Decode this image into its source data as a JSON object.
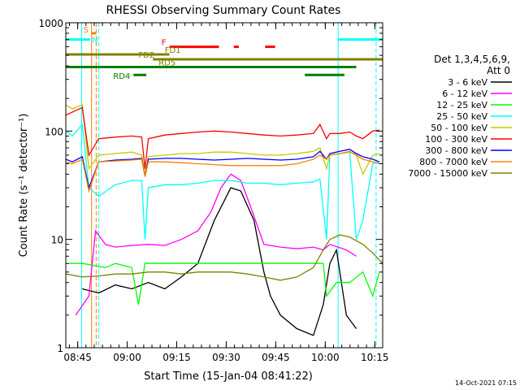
{
  "chart_data": {
    "type": "line",
    "title": "RHESSI Observing Summary Count Rates",
    "xlabel": "Start Time (15-Jan-04 08:41:22)",
    "ylabel": "Count Rate (s⁻¹ detector⁻¹)",
    "x_unit": "minutes after 08:41:22",
    "xlim": [
      0,
      96
    ],
    "ylim": [
      1,
      1000
    ],
    "y_scale": "log",
    "grid": false,
    "legend_position": "right",
    "x_ticks": [
      {
        "minute": 3.6,
        "label": "08:45"
      },
      {
        "minute": 18.6,
        "label": "09:00"
      },
      {
        "minute": 33.6,
        "label": "09:15"
      },
      {
        "minute": 48.6,
        "label": "09:30"
      },
      {
        "minute": 63.6,
        "label": "09:45"
      },
      {
        "minute": 78.6,
        "label": "10:00"
      },
      {
        "minute": 93.6,
        "label": "10:15"
      }
    ],
    "y_ticks": [
      {
        "value": 1,
        "label": "1"
      },
      {
        "value": 10,
        "label": "10"
      },
      {
        "value": 100,
        "label": "100"
      },
      {
        "value": 1000,
        "label": "1000"
      }
    ],
    "legend_header": [
      "Det 1,3,4,5,6,9,",
      "Att 0"
    ],
    "timestamp": "14-Oct-2021 07:15",
    "series": [
      {
        "name": "3 - 6 keV",
        "color": "#000000",
        "points": [
          [
            5,
            3.5
          ],
          [
            10,
            3.2
          ],
          [
            15,
            3.8
          ],
          [
            20,
            3.5
          ],
          [
            25,
            4.0
          ],
          [
            30,
            3.5
          ],
          [
            35,
            4.5
          ],
          [
            40,
            6
          ],
          [
            45,
            15
          ],
          [
            50,
            30
          ],
          [
            53,
            28
          ],
          [
            57,
            15
          ],
          [
            60,
            5
          ],
          [
            62,
            3
          ],
          [
            65,
            2
          ],
          [
            70,
            1.5
          ],
          [
            75,
            1.3
          ],
          [
            78,
            2.5
          ],
          [
            80,
            6
          ],
          [
            82,
            8
          ],
          [
            85,
            2
          ],
          [
            88,
            1.5
          ]
        ]
      },
      {
        "name": "6 - 12 keV",
        "color": "#ff00ff",
        "points": [
          [
            3,
            2
          ],
          [
            7,
            3
          ],
          [
            9,
            12
          ],
          [
            12,
            9
          ],
          [
            15,
            8.5
          ],
          [
            20,
            8.8
          ],
          [
            25,
            9
          ],
          [
            30,
            8.8
          ],
          [
            35,
            10
          ],
          [
            40,
            12
          ],
          [
            44,
            18
          ],
          [
            47,
            30
          ],
          [
            50,
            40
          ],
          [
            53,
            35
          ],
          [
            56,
            20
          ],
          [
            60,
            9
          ],
          [
            65,
            8.5
          ],
          [
            70,
            8.2
          ],
          [
            75,
            8.5
          ],
          [
            78,
            8
          ],
          [
            80,
            9
          ],
          [
            85,
            8
          ],
          [
            88,
            7
          ]
        ]
      },
      {
        "name": "12 - 25 keV",
        "color": "#00ff00",
        "points": [
          [
            1,
            6
          ],
          [
            5,
            6
          ],
          [
            12,
            5.5
          ],
          [
            15,
            6
          ],
          [
            20,
            5.5
          ],
          [
            22,
            2.5
          ],
          [
            24,
            6
          ],
          [
            30,
            6
          ],
          [
            40,
            6
          ],
          [
            50,
            6
          ],
          [
            60,
            6
          ],
          [
            70,
            6
          ],
          [
            78,
            6
          ],
          [
            79,
            3
          ],
          [
            82,
            4
          ],
          [
            86,
            4
          ],
          [
            90,
            5
          ],
          [
            93,
            3
          ],
          [
            95,
            5
          ]
        ]
      },
      {
        "name": "25 - 50 keV",
        "color": "#00ffff",
        "points": [
          [
            0,
            100
          ],
          [
            2,
            90
          ],
          [
            5,
            115
          ],
          [
            7,
            30
          ],
          [
            10,
            25
          ],
          [
            15,
            32
          ],
          [
            20,
            35
          ],
          [
            23,
            35
          ],
          [
            24,
            10
          ],
          [
            25,
            30
          ],
          [
            30,
            32
          ],
          [
            35,
            32
          ],
          [
            40,
            33
          ],
          [
            45,
            35
          ],
          [
            50,
            35
          ],
          [
            55,
            33
          ],
          [
            60,
            33
          ],
          [
            65,
            32
          ],
          [
            70,
            33
          ],
          [
            75,
            34
          ],
          [
            77,
            36
          ],
          [
            79,
            10
          ],
          [
            80,
            60
          ],
          [
            83,
            62
          ],
          [
            86,
            64
          ],
          [
            88,
            10
          ],
          [
            90,
            15
          ],
          [
            93,
            50
          ],
          [
            95,
            52
          ]
        ]
      },
      {
        "name": "50 - 100 keV",
        "color": "#c8c800",
        "points": [
          [
            0,
            175
          ],
          [
            2,
            160
          ],
          [
            5,
            175
          ],
          [
            7,
            45
          ],
          [
            10,
            60
          ],
          [
            15,
            62
          ],
          [
            20,
            64
          ],
          [
            23,
            60
          ],
          [
            24,
            40
          ],
          [
            25,
            58
          ],
          [
            30,
            60
          ],
          [
            35,
            62
          ],
          [
            40,
            62
          ],
          [
            45,
            64
          ],
          [
            50,
            64
          ],
          [
            55,
            62
          ],
          [
            60,
            60
          ],
          [
            65,
            60
          ],
          [
            70,
            62
          ],
          [
            75,
            65
          ],
          [
            77,
            70
          ],
          [
            79,
            45
          ],
          [
            80,
            60
          ],
          [
            83,
            62
          ],
          [
            86,
            64
          ],
          [
            88,
            60
          ],
          [
            90,
            40
          ],
          [
            93,
            60
          ],
          [
            95,
            62
          ]
        ]
      },
      {
        "name": "100 - 300 keV",
        "color": "#ff0000",
        "points": [
          [
            0,
            140
          ],
          [
            2,
            150
          ],
          [
            5,
            165
          ],
          [
            7,
            60
          ],
          [
            10,
            85
          ],
          [
            15,
            88
          ],
          [
            20,
            90
          ],
          [
            23,
            88
          ],
          [
            24,
            45
          ],
          [
            25,
            85
          ],
          [
            30,
            92
          ],
          [
            35,
            95
          ],
          [
            40,
            98
          ],
          [
            45,
            100
          ],
          [
            50,
            98
          ],
          [
            55,
            95
          ],
          [
            60,
            92
          ],
          [
            65,
            90
          ],
          [
            70,
            92
          ],
          [
            75,
            95
          ],
          [
            77,
            115
          ],
          [
            79,
            85
          ],
          [
            80,
            95
          ],
          [
            83,
            95
          ],
          [
            86,
            98
          ],
          [
            88,
            90
          ],
          [
            90,
            85
          ],
          [
            93,
            100
          ],
          [
            95,
            102
          ]
        ]
      },
      {
        "name": "300 - 800 keV",
        "color": "#0000ff",
        "points": [
          [
            0,
            55
          ],
          [
            2,
            52
          ],
          [
            5,
            58
          ],
          [
            7,
            30
          ],
          [
            10,
            52
          ],
          [
            15,
            54
          ],
          [
            20,
            55
          ],
          [
            23,
            56
          ],
          [
            24,
            38
          ],
          [
            25,
            55
          ],
          [
            30,
            56
          ],
          [
            35,
            56
          ],
          [
            40,
            55
          ],
          [
            45,
            54
          ],
          [
            50,
            55
          ],
          [
            55,
            56
          ],
          [
            60,
            55
          ],
          [
            65,
            54
          ],
          [
            70,
            55
          ],
          [
            75,
            58
          ],
          [
            77,
            65
          ],
          [
            79,
            55
          ],
          [
            80,
            62
          ],
          [
            83,
            65
          ],
          [
            86,
            68
          ],
          [
            88,
            62
          ],
          [
            90,
            58
          ],
          [
            93,
            55
          ],
          [
            95,
            52
          ]
        ]
      },
      {
        "name": "800 - 7000 keV",
        "color": "#ff8000",
        "points": [
          [
            0,
            52
          ],
          [
            2,
            50
          ],
          [
            5,
            55
          ],
          [
            7,
            28
          ],
          [
            10,
            52
          ],
          [
            15,
            53
          ],
          [
            20,
            54
          ],
          [
            23,
            55
          ],
          [
            24,
            38
          ],
          [
            25,
            52
          ],
          [
            30,
            52
          ],
          [
            35,
            51
          ],
          [
            40,
            50
          ],
          [
            45,
            49
          ],
          [
            50,
            48
          ],
          [
            55,
            48
          ],
          [
            60,
            48
          ],
          [
            65,
            48
          ],
          [
            70,
            50
          ],
          [
            75,
            55
          ],
          [
            77,
            60
          ],
          [
            79,
            55
          ],
          [
            80,
            60
          ],
          [
            83,
            62
          ],
          [
            86,
            65
          ],
          [
            88,
            60
          ],
          [
            90,
            55
          ],
          [
            93,
            52
          ],
          [
            95,
            50
          ]
        ]
      },
      {
        "name": "7000 - 15000 keV",
        "color": "#808000",
        "points": [
          [
            0,
            4.8
          ],
          [
            5,
            4.5
          ],
          [
            10,
            4.6
          ],
          [
            15,
            4.8
          ],
          [
            20,
            4.8
          ],
          [
            25,
            5
          ],
          [
            30,
            5
          ],
          [
            35,
            4.8
          ],
          [
            40,
            5
          ],
          [
            45,
            5
          ],
          [
            50,
            5
          ],
          [
            55,
            4.8
          ],
          [
            60,
            4.5
          ],
          [
            65,
            4.2
          ],
          [
            70,
            4.5
          ],
          [
            75,
            5.5
          ],
          [
            78,
            8
          ],
          [
            80,
            10
          ],
          [
            83,
            11
          ],
          [
            86,
            10.5
          ],
          [
            90,
            9
          ],
          [
            93,
            7.5
          ],
          [
            96,
            6
          ]
        ]
      }
    ],
    "vertical_markers": [
      {
        "minute": 4.8,
        "color": "#00ffff",
        "style": "solid"
      },
      {
        "minute": 7.8,
        "color": "#ff8000",
        "style": "solid"
      },
      {
        "minute": 9.2,
        "color": "#ff8000",
        "style": "dashed"
      },
      {
        "minute": 10.0,
        "color": "#00ffff",
        "style": "dashed"
      },
      {
        "minute": 82.5,
        "color": "#00ffff",
        "style": "solid"
      },
      {
        "minute": 94.0,
        "color": "#00ffff",
        "style": "dashed"
      }
    ],
    "flag_bars": [
      {
        "label": "S",
        "color": "#ff8000",
        "label_color": "#ff8000",
        "y_value": 800,
        "segments": [
          [
            7.8,
            9.2
          ]
        ]
      },
      {
        "label": "N",
        "color": "#00ffff",
        "label_color": "#00ffff",
        "y_value": 700,
        "segments": [
          [
            0,
            7.4
          ],
          [
            82.5,
            96
          ]
        ]
      },
      {
        "label": "F",
        "color": "#ff0000",
        "label_color": "#ff0000",
        "y_value": 600,
        "segments": [
          [
            31.4,
            46.4
          ],
          [
            50.9,
            52.4
          ],
          [
            60.4,
            63.4
          ]
        ]
      },
      {
        "label": "FD1",
        "color": "#808000",
        "label_color": "#808000",
        "y_value": 510,
        "segments": [
          [
            0,
            31.4
          ]
        ]
      },
      {
        "label": "FD2",
        "color": "#808000",
        "label_color": "#808000",
        "y_value": 460,
        "segments": [
          [
            26.4,
            96
          ]
        ]
      },
      {
        "label": "RD5",
        "color": "#008000",
        "label_color": "#808000",
        "y_value": 390,
        "segments": [
          [
            0,
            88
          ]
        ]
      },
      {
        "label": "RD4",
        "color": "#008000",
        "label_color": "#008000",
        "y_value": 330,
        "segments": [
          [
            20.5,
            24.4
          ],
          [
            72.4,
            84.4
          ]
        ]
      }
    ]
  }
}
